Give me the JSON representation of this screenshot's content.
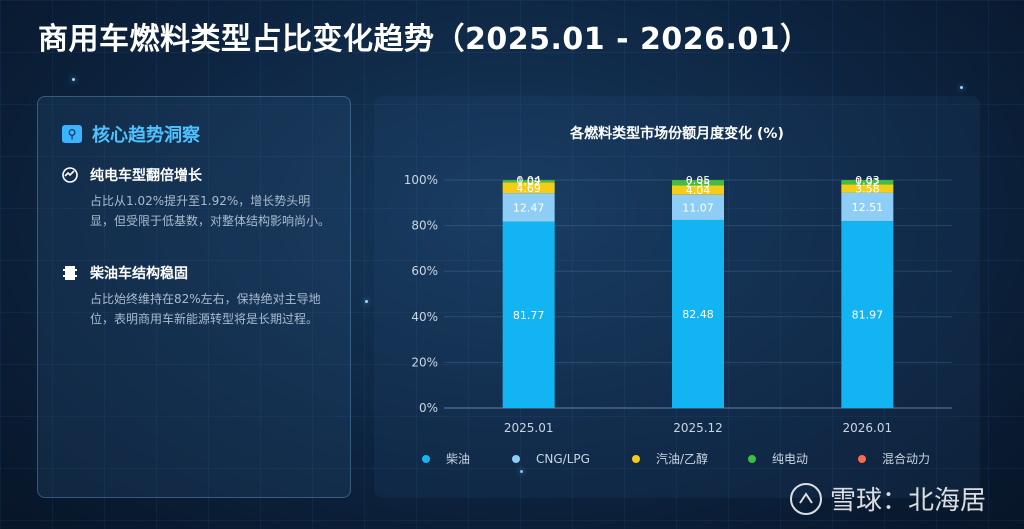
{
  "page": {
    "title": "商用车燃料类型占比变化趋势（2025.01 - 2026.01）"
  },
  "panel": {
    "title": "核心趋势洞察",
    "insights": [
      {
        "title": "纯电车型翻倍增长",
        "text": "占比从1.02%提升至1.92%，增长势头明显，但受限于低基数，对整体结构影响尚小。"
      },
      {
        "title": "柴油车结构稳固",
        "text": "占比始终维持在82%左右，保持绝对主导地位，表明商用车新能源转型将是长期过程。"
      }
    ]
  },
  "watermark": {
    "text": "雪球：北海居"
  },
  "colors": {
    "accent": "#4cc2ff"
  },
  "chart_data": {
    "type": "bar",
    "stacked": true,
    "title": "各燃料类型市场份额月度变化 (%)",
    "categories": [
      "2025.01",
      "2025.12",
      "2026.01"
    ],
    "series": [
      {
        "name": "柴油",
        "color": "#12b5f2",
        "values": [
          81.77,
          82.48,
          81.97
        ]
      },
      {
        "name": "CNG/LPG",
        "color": "#8ecdf6",
        "values": [
          12.47,
          11.07,
          12.51
        ]
      },
      {
        "name": "汽油/乙醇",
        "color": "#f3cd17",
        "values": [
          4.69,
          4.04,
          3.58
        ]
      },
      {
        "name": "纯电动",
        "color": "#3fbf3f",
        "values": [
          1.02,
          2.35,
          1.92
        ]
      },
      {
        "name": "混合动力",
        "color": "#ff6a4d",
        "values": [
          0.04,
          0.05,
          0.03
        ]
      }
    ],
    "ylim": [
      0,
      100
    ],
    "yticks": [
      "0%",
      "20%",
      "40%",
      "60%",
      "80%",
      "100%"
    ],
    "grid": true,
    "legend_position": "bottom"
  }
}
